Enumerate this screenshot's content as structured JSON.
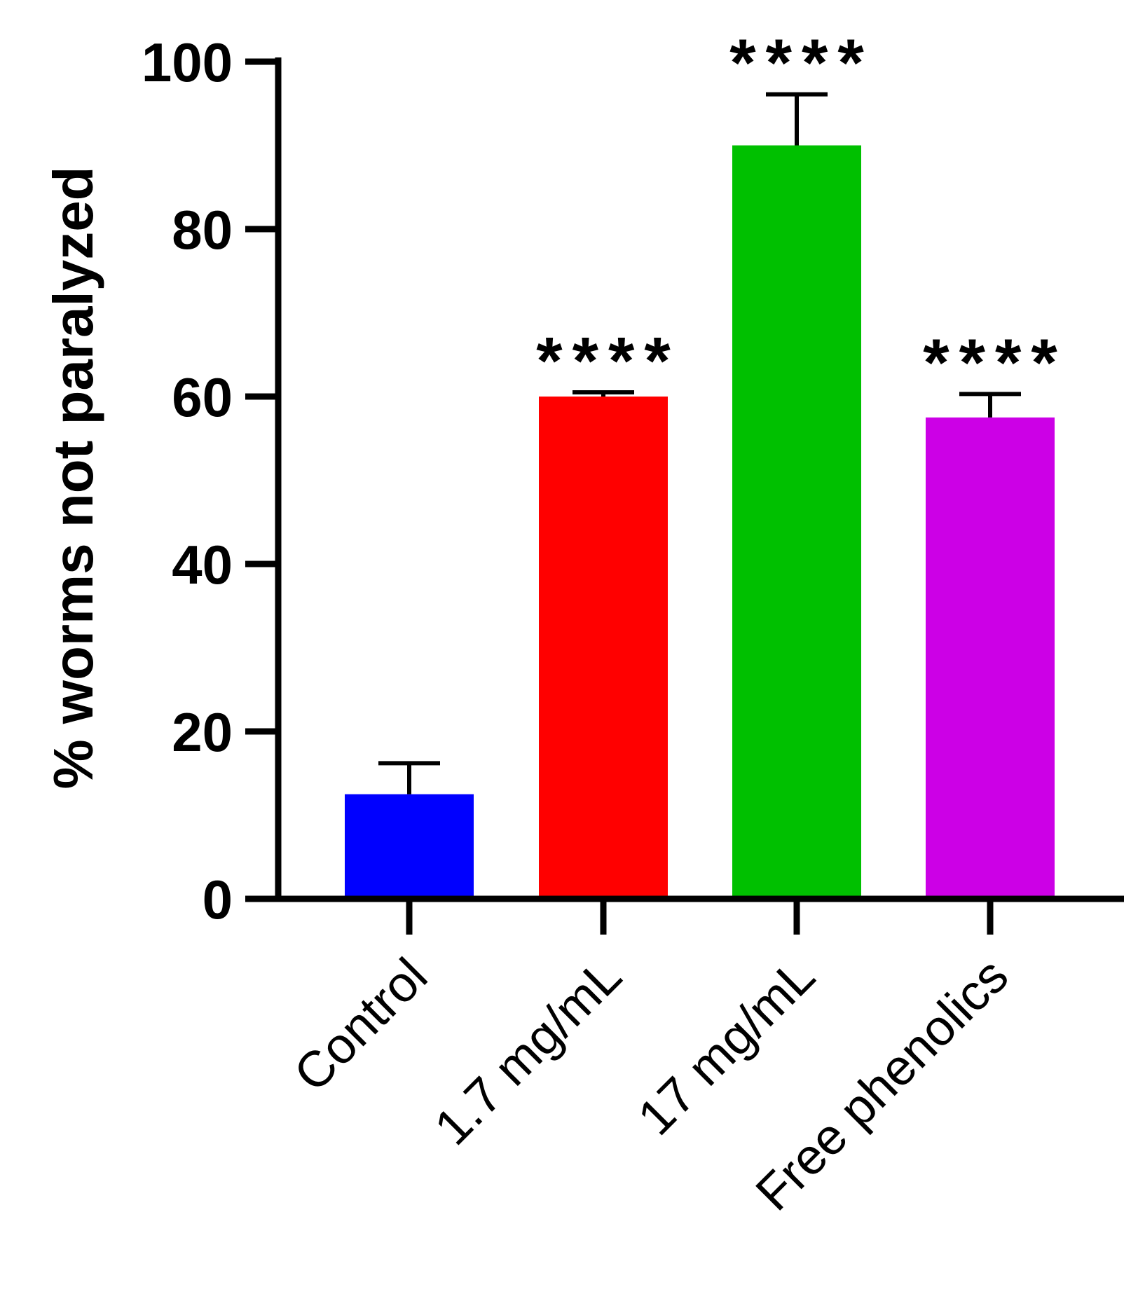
{
  "chart_data": {
    "type": "bar",
    "title": "",
    "xlabel": "",
    "ylabel": "% worms not paralyzed",
    "ylim": [
      0,
      100
    ],
    "yticks": [
      0,
      20,
      40,
      60,
      80,
      100
    ],
    "categories": [
      "Control",
      "1.7 mg/mL",
      "17 mg/mL",
      "Free phenolics"
    ],
    "values": [
      12.5,
      60,
      90,
      57.5
    ],
    "error_upper": [
      3.7,
      0.5,
      6.1,
      2.8
    ],
    "colors": [
      "#0000ff",
      "#ff0000",
      "#00c000",
      "#cc00e6"
    ],
    "significance": [
      "",
      "****",
      "****",
      "****"
    ],
    "grid": false,
    "legend": "none"
  }
}
